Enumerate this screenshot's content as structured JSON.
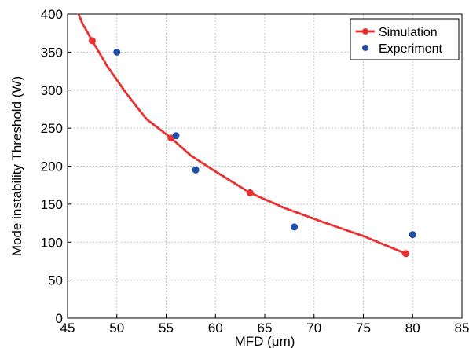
{
  "chart_data": {
    "type": "scatter",
    "title": "",
    "xlabel": "MFD (μm)",
    "ylabel": "Mode instability Threshold (W)",
    "xlim": [
      45,
      85
    ],
    "ylim": [
      0,
      400
    ],
    "xticks": [
      45,
      50,
      55,
      60,
      65,
      70,
      75,
      80,
      85
    ],
    "yticks": [
      0,
      50,
      100,
      150,
      200,
      250,
      300,
      350,
      400
    ],
    "grid": true,
    "legend_position": "top-right",
    "series": [
      {
        "name": "Simulation",
        "style": "dotted-line-with-markers",
        "color": "#e83030",
        "x": [
          47.5,
          55.5,
          63.5,
          79.3
        ],
        "y": [
          365,
          237,
          165,
          85
        ],
        "curve": {
          "x": [
            45.8,
            46.5,
            47.5,
            49,
            51,
            53,
            55.5,
            57.5,
            60,
            63.5,
            67,
            71,
            75,
            79.3
          ],
          "y": [
            410,
            388,
            365,
            332,
            295,
            262,
            237,
            214,
            193,
            165,
            145,
            126,
            108,
            85
          ]
        }
      },
      {
        "name": "Experiment",
        "style": "markers",
        "color": "#1f4fa8",
        "x": [
          50,
          56,
          58,
          68,
          80
        ],
        "y": [
          350,
          240,
          195,
          120,
          110
        ]
      }
    ]
  }
}
